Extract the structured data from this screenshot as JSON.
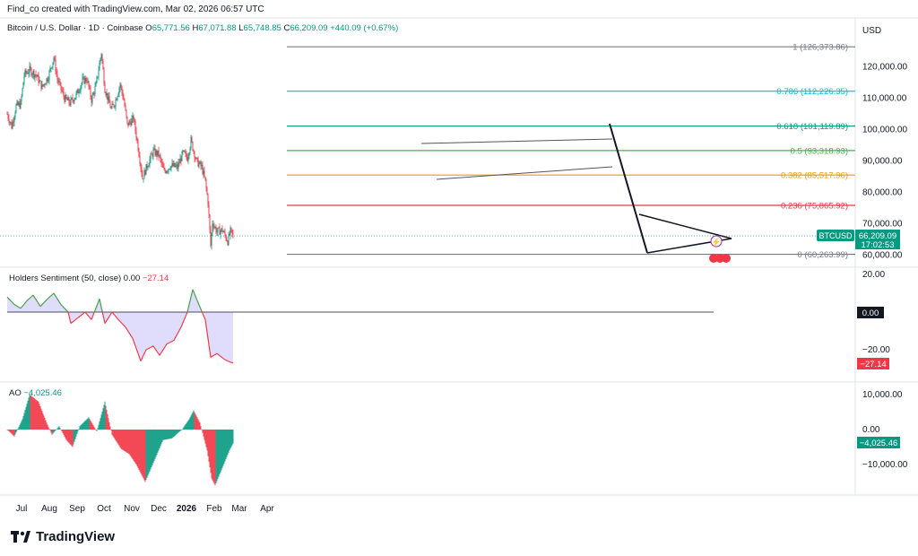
{
  "header": {
    "created": "Find_co created with TradingView.com, Mar 02, 2026 06:57 UTC"
  },
  "symbol": {
    "name": "Bitcoin / U.S. Dollar · 1D · Coinbase",
    "o_label": "O",
    "o": "65,771.56",
    "h_label": "H",
    "h": "67,071.88",
    "l_label": "L",
    "l": "65,748.85",
    "c_label": "C",
    "c": "66,209.09",
    "change": "+440.09 (+0.67%)",
    "currency": "USD"
  },
  "price_badge": {
    "ticker": "BTCUSD",
    "price": "66,209.09",
    "countdown": "17:02:53"
  },
  "indicators": {
    "holders": {
      "name": "Holders Sentiment (50, close)",
      "v1": "0.00",
      "v2": "−27.14",
      "badge_zero": "0.00",
      "badge_val": "−27.14"
    },
    "ao": {
      "name": "AO",
      "value": "−4,025.46",
      "badge_val": "−4,025.46"
    }
  },
  "colors": {
    "up": "#089981",
    "down": "#f23645",
    "sentiment_fill": "#d9d6fb",
    "green_line": "#43a047"
  },
  "fib_levels": [
    {
      "label": "1 (126,373.86)",
      "price": 126373.86,
      "color": "#787b86"
    },
    {
      "label": "0.786 (112,226.35)",
      "price": 112226.35,
      "color": "#00bcd4"
    },
    {
      "label": "0.618 (101,119.89)",
      "price": 101119.89,
      "color": "#089981"
    },
    {
      "label": "0.5 (93,318.93)",
      "price": 93318.93,
      "color": "#4caf50"
    },
    {
      "label": "0.382 (85,517.96)",
      "price": 85517.96,
      "color": "#ff9800"
    },
    {
      "label": "0.236 (75,865.92)",
      "price": 75865.92,
      "color": "#f23645"
    },
    {
      "label": "0 (60,263.99)",
      "price": 60263.99,
      "color": "#787b86"
    }
  ],
  "chart_data": {
    "type": "candlestick",
    "x_tick_labels": [
      "Jul",
      "Aug",
      "Sep",
      "Oct",
      "Nov",
      "Dec",
      "2026",
      "Feb",
      "Mar",
      "Apr"
    ],
    "price_axis_labels": [
      "120,000.00",
      "110,000.00",
      "100,000.00",
      "90,000.00",
      "80,000.00",
      "70,000.00",
      "60,000.00"
    ],
    "price_axis_values": [
      120000,
      110000,
      100000,
      90000,
      80000,
      70000,
      60000
    ],
    "ylim": [
      57000,
      130000
    ],
    "price_path": [
      [
        "2025-06-23",
        105000
      ],
      [
        "2025-06-28",
        101000
      ],
      [
        "2025-07-03",
        107500
      ],
      [
        "2025-07-08",
        108000
      ],
      [
        "2025-07-12",
        117500
      ],
      [
        "2025-07-18",
        119000
      ],
      [
        "2025-07-25",
        117500
      ],
      [
        "2025-08-01",
        113500
      ],
      [
        "2025-08-08",
        117000
      ],
      [
        "2025-08-14",
        123000
      ],
      [
        "2025-08-18",
        116000
      ],
      [
        "2025-08-26",
        110000
      ],
      [
        "2025-09-01",
        108500
      ],
      [
        "2025-09-08",
        111000
      ],
      [
        "2025-09-15",
        115500
      ],
      [
        "2025-09-20",
        116000
      ],
      [
        "2025-09-25",
        109500
      ],
      [
        "2025-09-30",
        114000
      ],
      [
        "2025-10-06",
        124500
      ],
      [
        "2025-10-10",
        113000
      ],
      [
        "2025-10-17",
        106500
      ],
      [
        "2025-10-21",
        108500
      ],
      [
        "2025-10-27",
        114500
      ],
      [
        "2025-10-31",
        109500
      ],
      [
        "2025-11-04",
        101500
      ],
      [
        "2025-11-11",
        103500
      ],
      [
        "2025-11-16",
        94500
      ],
      [
        "2025-11-21",
        84500
      ],
      [
        "2025-11-26",
        88500
      ],
      [
        "2025-12-03",
        93000
      ],
      [
        "2025-12-09",
        92000
      ],
      [
        "2025-12-15",
        86500
      ],
      [
        "2025-12-22",
        88500
      ],
      [
        "2025-12-30",
        88000
      ],
      [
        "2026-01-05",
        92500
      ],
      [
        "2026-01-10",
        91000
      ],
      [
        "2026-01-14",
        96500
      ],
      [
        "2026-01-20",
        90000
      ],
      [
        "2026-01-26",
        88000
      ],
      [
        "2026-01-30",
        83500
      ],
      [
        "2026-02-02",
        77000
      ],
      [
        "2026-02-05",
        63000
      ],
      [
        "2026-02-07",
        70500
      ],
      [
        "2026-02-12",
        67500
      ],
      [
        "2026-02-18",
        68000
      ],
      [
        "2026-02-24",
        64500
      ],
      [
        "2026-02-27",
        67500
      ],
      [
        "2026-03-02",
        66200
      ]
    ],
    "sentiment_axis_labels": [
      "20.00",
      "−20.00"
    ],
    "sentiment_path": [
      [
        "2025-06-23",
        8
      ],
      [
        "2025-07-01",
        4
      ],
      [
        "2025-07-08",
        2
      ],
      [
        "2025-07-15",
        6
      ],
      [
        "2025-07-22",
        9
      ],
      [
        "2025-07-30",
        3
      ],
      [
        "2025-08-07",
        7
      ],
      [
        "2025-08-14",
        10
      ],
      [
        "2025-08-22",
        4
      ],
      [
        "2025-08-30",
        0
      ],
      [
        "2025-09-02",
        -6
      ],
      [
        "2025-09-10",
        -3
      ],
      [
        "2025-09-18",
        0
      ],
      [
        "2025-09-25",
        -4
      ],
      [
        "2025-10-04",
        7
      ],
      [
        "2025-10-10",
        -6
      ],
      [
        "2025-10-18",
        0
      ],
      [
        "2025-10-25",
        -4
      ],
      [
        "2025-11-02",
        -8
      ],
      [
        "2025-11-10",
        -14
      ],
      [
        "2025-11-19",
        -26
      ],
      [
        "2025-11-25",
        -20
      ],
      [
        "2025-12-03",
        -18
      ],
      [
        "2025-12-10",
        -23
      ],
      [
        "2025-12-18",
        -17
      ],
      [
        "2025-12-26",
        -15
      ],
      [
        "2026-01-03",
        -8
      ],
      [
        "2026-01-10",
        0
      ],
      [
        "2026-01-16",
        12
      ],
      [
        "2026-01-22",
        5
      ],
      [
        "2026-01-30",
        -4
      ],
      [
        "2026-02-05",
        -24
      ],
      [
        "2026-02-12",
        -22
      ],
      [
        "2026-02-20",
        -25
      ],
      [
        "2026-02-24",
        -26
      ],
      [
        "2026-03-02",
        -27.14
      ]
    ],
    "ao_axis_labels": [
      "10,000.00",
      "0.00",
      "−10,000.00"
    ],
    "ao_path": [
      [
        "2025-06-23",
        0
      ],
      [
        "2025-07-01",
        -2000
      ],
      [
        "2025-07-10",
        3000
      ],
      [
        "2025-07-18",
        10000
      ],
      [
        "2025-07-28",
        8000
      ],
      [
        "2025-08-06",
        2000
      ],
      [
        "2025-08-12",
        -1500
      ],
      [
        "2025-08-20",
        1000
      ],
      [
        "2025-08-28",
        -3000
      ],
      [
        "2025-09-04",
        -5000
      ],
      [
        "2025-09-12",
        1000
      ],
      [
        "2025-09-22",
        3500
      ],
      [
        "2025-10-01",
        -500
      ],
      [
        "2025-10-10",
        8000
      ],
      [
        "2025-10-18",
        -1500
      ],
      [
        "2025-10-28",
        -5500
      ],
      [
        "2025-11-06",
        -7000
      ],
      [
        "2025-11-14",
        -10000
      ],
      [
        "2025-11-24",
        -15000
      ],
      [
        "2025-12-04",
        -9000
      ],
      [
        "2025-12-14",
        -3000
      ],
      [
        "2025-12-24",
        -2500
      ],
      [
        "2026-01-04",
        0
      ],
      [
        "2026-01-12",
        3000
      ],
      [
        "2026-01-17",
        5500
      ],
      [
        "2026-01-24",
        2000
      ],
      [
        "2026-02-01",
        -6000
      ],
      [
        "2026-02-06",
        -14000
      ],
      [
        "2026-02-10",
        -16000
      ],
      [
        "2026-02-18",
        -11000
      ],
      [
        "2026-02-26",
        -6000
      ],
      [
        "2026-03-02",
        -4025
      ]
    ]
  },
  "footer": {
    "brand": "TradingView"
  }
}
